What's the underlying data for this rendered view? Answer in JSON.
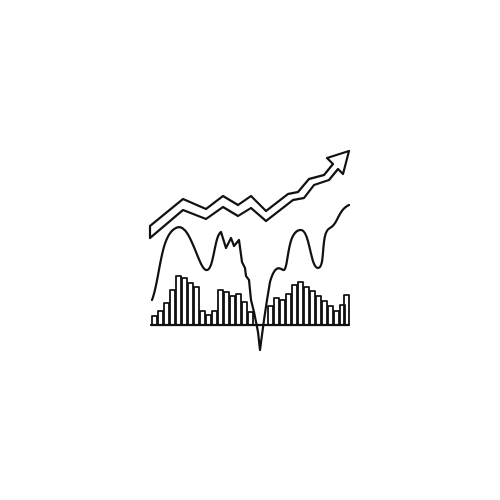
{
  "icon": {
    "name": "stock-market-chart-icon",
    "stroke_color": "#111111",
    "background_color": "#ffffff",
    "elements": [
      "trend-arrow-icon",
      "wave-line",
      "bar-histogram"
    ]
  }
}
